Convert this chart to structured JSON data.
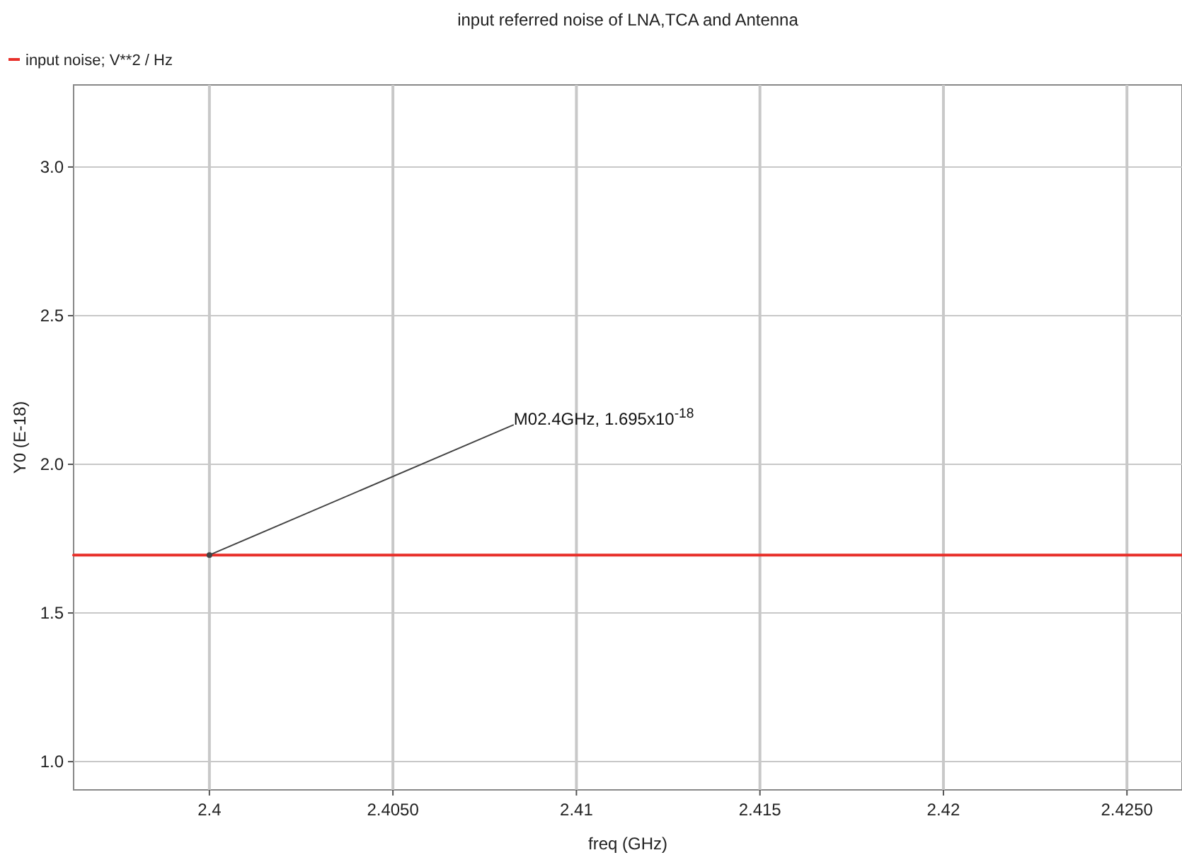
{
  "chart_data": {
    "type": "line",
    "title": "input referred noise of LNA,TCA and Antenna",
    "xlabel": "freq (GHz)",
    "ylabel": "Y0 (E-18)",
    "x": [
      2.3963,
      2.4265
    ],
    "series": [
      {
        "name": "input noise; V**2 / Hz",
        "color": "#e8302a",
        "values": [
          1.695,
          1.695
        ]
      }
    ],
    "xlim": [
      2.3963,
      2.4265
    ],
    "xticks": [
      2.4,
      {
        "value": 2.405,
        "label": "2.4050"
      },
      2.41,
      2.415,
      2.42,
      {
        "value": 2.425,
        "label": "2.4250"
      }
    ],
    "ylim": [
      0.905,
      3.276
    ],
    "yticks": [
      {
        "value": 1.0,
        "label": "1.0"
      },
      1.5,
      {
        "value": 2.0,
        "label": "2.0"
      },
      2.5,
      {
        "value": 3.0,
        "label": "3.0"
      }
    ],
    "grid": true,
    "legend": "top left",
    "marker": "none",
    "line_style": "solid",
    "annotations": [
      {
        "text": "M02.4GHz, 1.695x10$^{-18}$",
        "x": 2.4,
        "y": 1.695
      }
    ]
  }
}
